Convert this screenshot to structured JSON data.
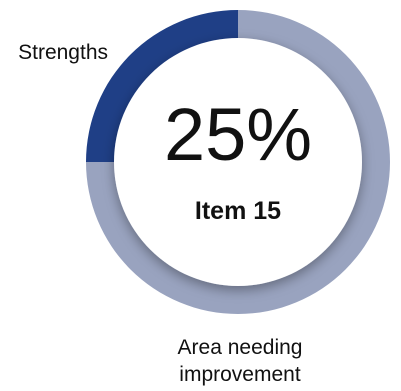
{
  "chart_data": {
    "type": "pie",
    "center_value": "25%",
    "center_label": "Item 15",
    "slices": [
      {
        "label": "Strengths",
        "value": 25,
        "color": "#1f3f86"
      },
      {
        "label_lines": [
          "Area needing",
          "improvement"
        ],
        "value": 75,
        "color": "#99a3bf"
      }
    ],
    "background_color": "#ffffff"
  }
}
